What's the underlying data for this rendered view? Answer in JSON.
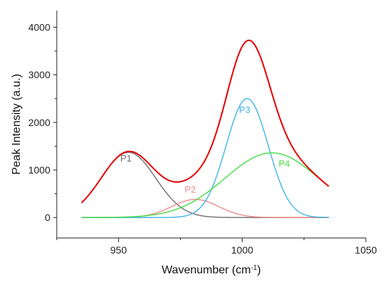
{
  "chart_data": {
    "type": "line",
    "title": "",
    "xlabel": "Wavenumber (cm",
    "xlabel_sup": "-1",
    "xlabel_close": ")",
    "ylabel": "Peak Intensity (a.u.)",
    "xlim": [
      925,
      1050
    ],
    "ylim": [
      -430,
      4350
    ],
    "x_ticks": [
      950,
      1000,
      1050
    ],
    "x_tick_labels": [
      "950",
      "1000",
      "1050"
    ],
    "y_ticks": [
      0,
      1000,
      2000,
      3000,
      4000
    ],
    "y_tick_labels": [
      "0",
      "1000",
      "2000",
      "3000",
      "4000"
    ],
    "x_range": [
      935,
      1035
    ],
    "grid": false,
    "series": [
      {
        "name": "P1",
        "kind": "gaussian",
        "center": 954,
        "amplitude": 1370,
        "sigma": 11,
        "color": "#6e6e6e",
        "label_x": 953,
        "label_y": 1180
      },
      {
        "name": "P2",
        "kind": "gaussian",
        "center": 981,
        "amplitude": 380,
        "sigma": 9.5,
        "color": "#f08c8c",
        "label_x": 979,
        "label_y": 520
      },
      {
        "name": "P3",
        "kind": "gaussian",
        "center": 1002,
        "amplitude": 2500,
        "sigma": 8.5,
        "color": "#3fb4e8",
        "label_x": 1001,
        "label_y": 2200
      },
      {
        "name": "P4",
        "kind": "gaussian",
        "center": 1012,
        "amplitude": 1360,
        "sigma": 19,
        "color": "#44dd44",
        "label_x": 1017,
        "label_y": 1070
      },
      {
        "name": "",
        "kind": "sum",
        "color": "#e60000"
      }
    ]
  }
}
